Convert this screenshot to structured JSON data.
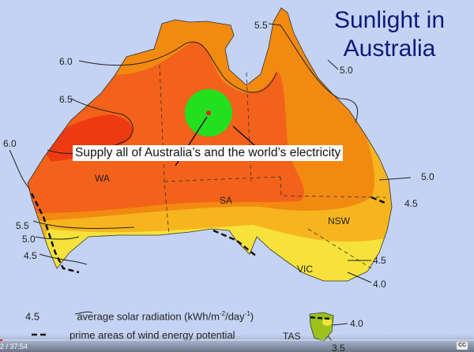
{
  "title_line1": "Sunlight in",
  "title_line2": "Australia",
  "callout": "Supply all of Australia’s and the world’s electricity",
  "contours": {
    "c55_top": "5.5",
    "c50_top": "5.0",
    "c60_top": "6.0",
    "c65": "6.5",
    "c60_west": "6.0",
    "c50_east": "5.0",
    "c45_east": "4.5",
    "c55_sw": "5.5",
    "c50_sw": "5.0",
    "c45_sw": "4.5",
    "c45_vic": "4.5",
    "c40_vic": "4.0",
    "c40_tas": "4.0",
    "c35_tas": "3.5"
  },
  "states": {
    "wa": "WA",
    "sa": "SA",
    "nsw": "NSW",
    "vic": "VIC",
    "tas": "TAS"
  },
  "legend": {
    "contour_value": "4.5",
    "contour_text": "average solar radiation (kWh/m",
    "contour_sup1": "-2",
    "contour_mid": "/day",
    "contour_sup2": "-1",
    "contour_end": ")",
    "wind_text": "prime areas of wind energy potential"
  },
  "player": {
    "time": "2 / 37:54",
    "cc_label": "CC",
    "progress_percent": 0.5
  },
  "colors": {
    "background": "#c4d3f3",
    "zone_65": "#ee3a12",
    "zone_60": "#f3621a",
    "zone_55": "#f28a12",
    "zone_50": "#f6b51f",
    "zone_45": "#f6e23a",
    "highlight": "#22e01e",
    "title": "#0d1a7a"
  }
}
